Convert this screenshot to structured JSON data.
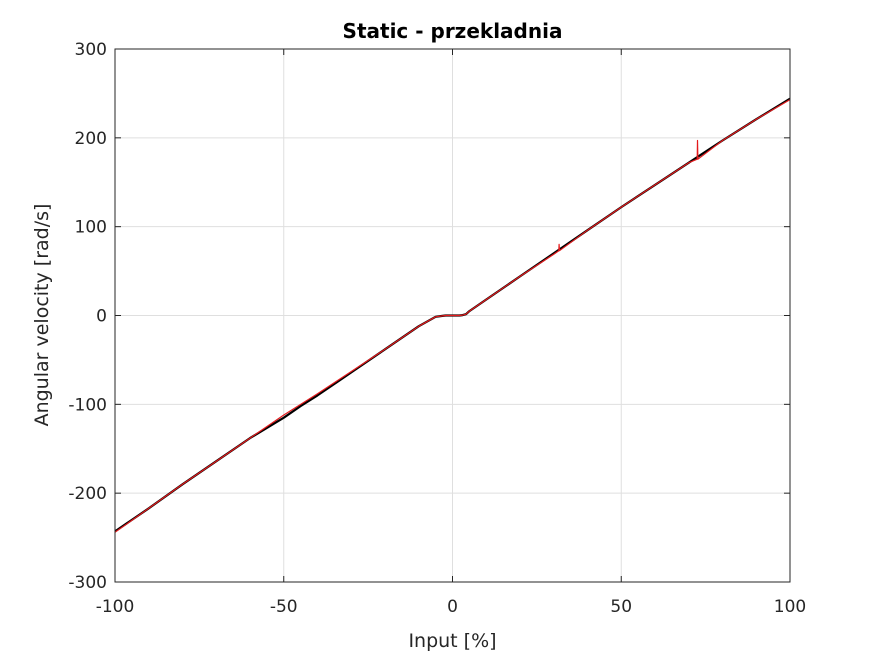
{
  "chart_data": {
    "type": "line",
    "title": "Static - przekladnia",
    "xlabel": "Input [%]",
    "ylabel": "Angular velocity [rad/s]",
    "xlim": [
      -100,
      100
    ],
    "ylim": [
      -300,
      300
    ],
    "xticks": [
      "-100",
      "-50",
      "0",
      "50",
      "100"
    ],
    "yticks": [
      "300",
      "200",
      "100",
      "0",
      "-100",
      "-200",
      "-300"
    ],
    "grid": true,
    "legend": "none",
    "series": [
      {
        "color": "#000000",
        "x": [
          -100,
          -90,
          -80,
          -70,
          -60,
          -50,
          -45,
          -40,
          -30,
          -20,
          -10,
          -5,
          -3,
          -2,
          -1,
          0,
          1,
          2,
          3,
          4,
          5,
          10,
          20,
          30,
          40,
          50,
          60,
          70,
          80,
          90,
          100
        ],
        "y": [
          -243,
          -217,
          -190,
          -164,
          -138,
          -115,
          -102,
          -90,
          -64,
          -38,
          -12,
          -1.5,
          -0.5,
          0,
          0,
          0,
          0,
          0,
          0.5,
          1.5,
          5,
          18,
          44,
          70,
          96,
          122,
          147,
          172,
          197,
          221,
          244
        ]
      },
      {
        "color": "#e31a1c",
        "x": [
          -100,
          -90,
          -80,
          -70,
          -60,
          -50,
          -40,
          -30,
          -20,
          -10,
          -5,
          -3,
          -2,
          -1,
          0,
          1,
          2,
          3,
          4,
          5,
          10,
          20,
          30,
          31.5,
          31.6,
          31.7,
          40,
          50,
          60,
          70,
          72.5,
          72.6,
          72.7,
          80,
          90,
          100
        ],
        "y": [
          -244,
          -217,
          -190,
          -164,
          -138,
          -112,
          -88,
          -63,
          -38,
          -12,
          -1.5,
          -0.5,
          0,
          0,
          0,
          0,
          0,
          0.5,
          1.5,
          5,
          18,
          44,
          69,
          73,
          80,
          73,
          96,
          122,
          147,
          172,
          176,
          197,
          176,
          197,
          221,
          243
        ]
      }
    ]
  }
}
